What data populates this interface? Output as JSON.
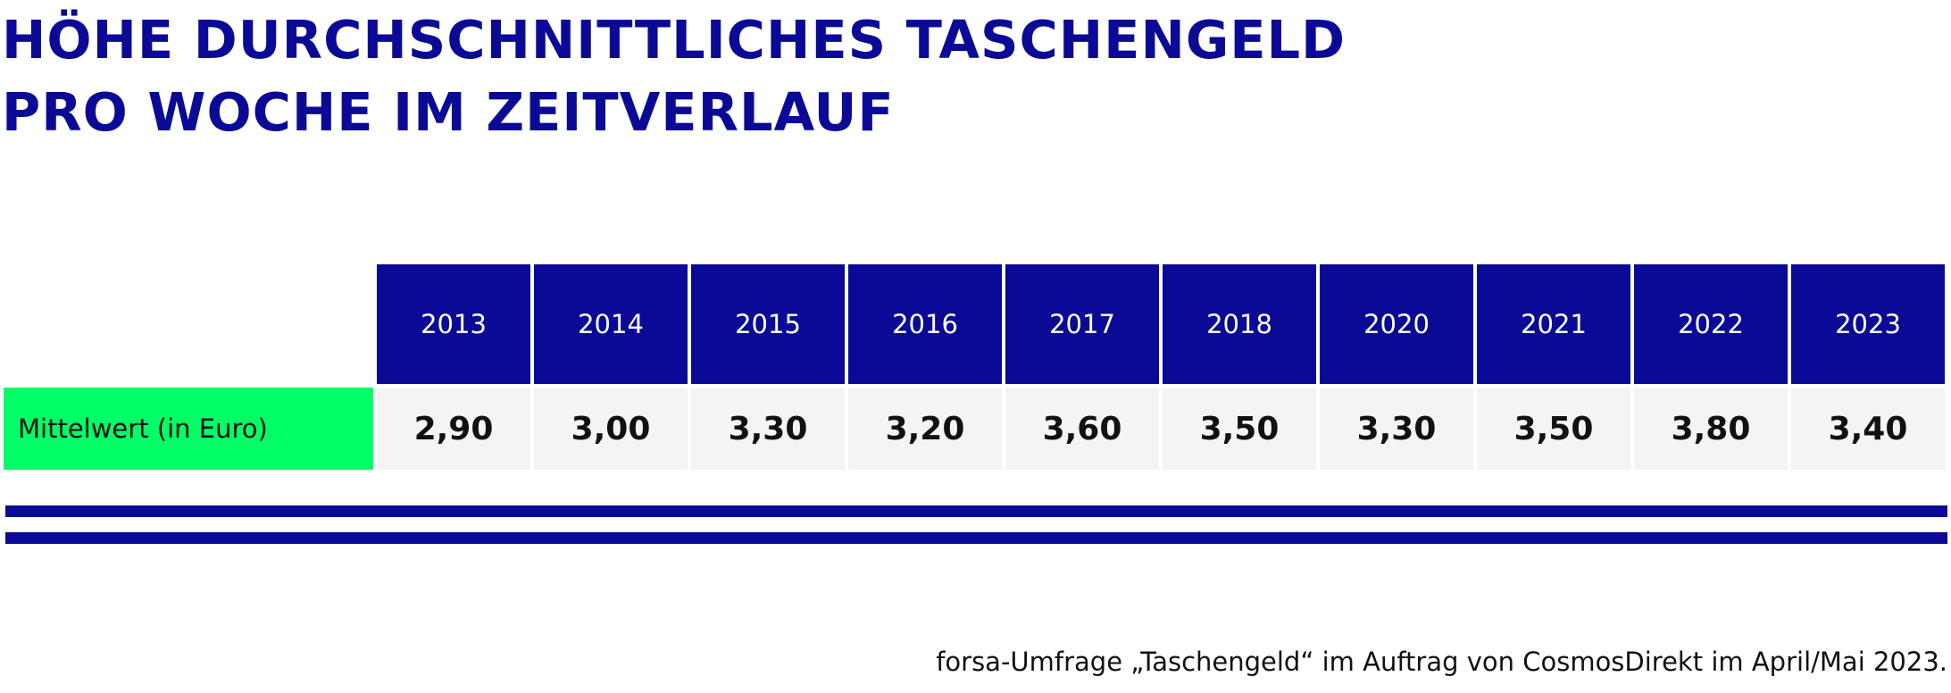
{
  "title": {
    "line1": "HÖHE DURCHSCHNITTLICHES TASCHENGELD",
    "line2": "PRO WOCHE IM ZEITVERLAUF"
  },
  "chart_data": {
    "type": "table",
    "title": "HÖHE DURCHSCHNITTLICHES TASCHENGELD PRO WOCHE IM ZEITVERLAUF",
    "columns": [
      "2013",
      "2014",
      "2015",
      "2016",
      "2017",
      "2018",
      "2020",
      "2021",
      "2022",
      "2023"
    ],
    "rows": [
      {
        "label": "Mittelwert (in Euro)",
        "values": [
          "2,90",
          "3,00",
          "3,30",
          "3,20",
          "3,60",
          "3,50",
          "3,30",
          "3,50",
          "3,80",
          "3,40"
        ]
      }
    ]
  },
  "source": "forsa-Umfrage „Taschengeld“ im Auftrag von CosmosDirekt im April/Mai 2023.",
  "colors": {
    "navy": "#0a0a96",
    "label_green": "#00ff66",
    "cell_gray": "#f4f4f4"
  }
}
